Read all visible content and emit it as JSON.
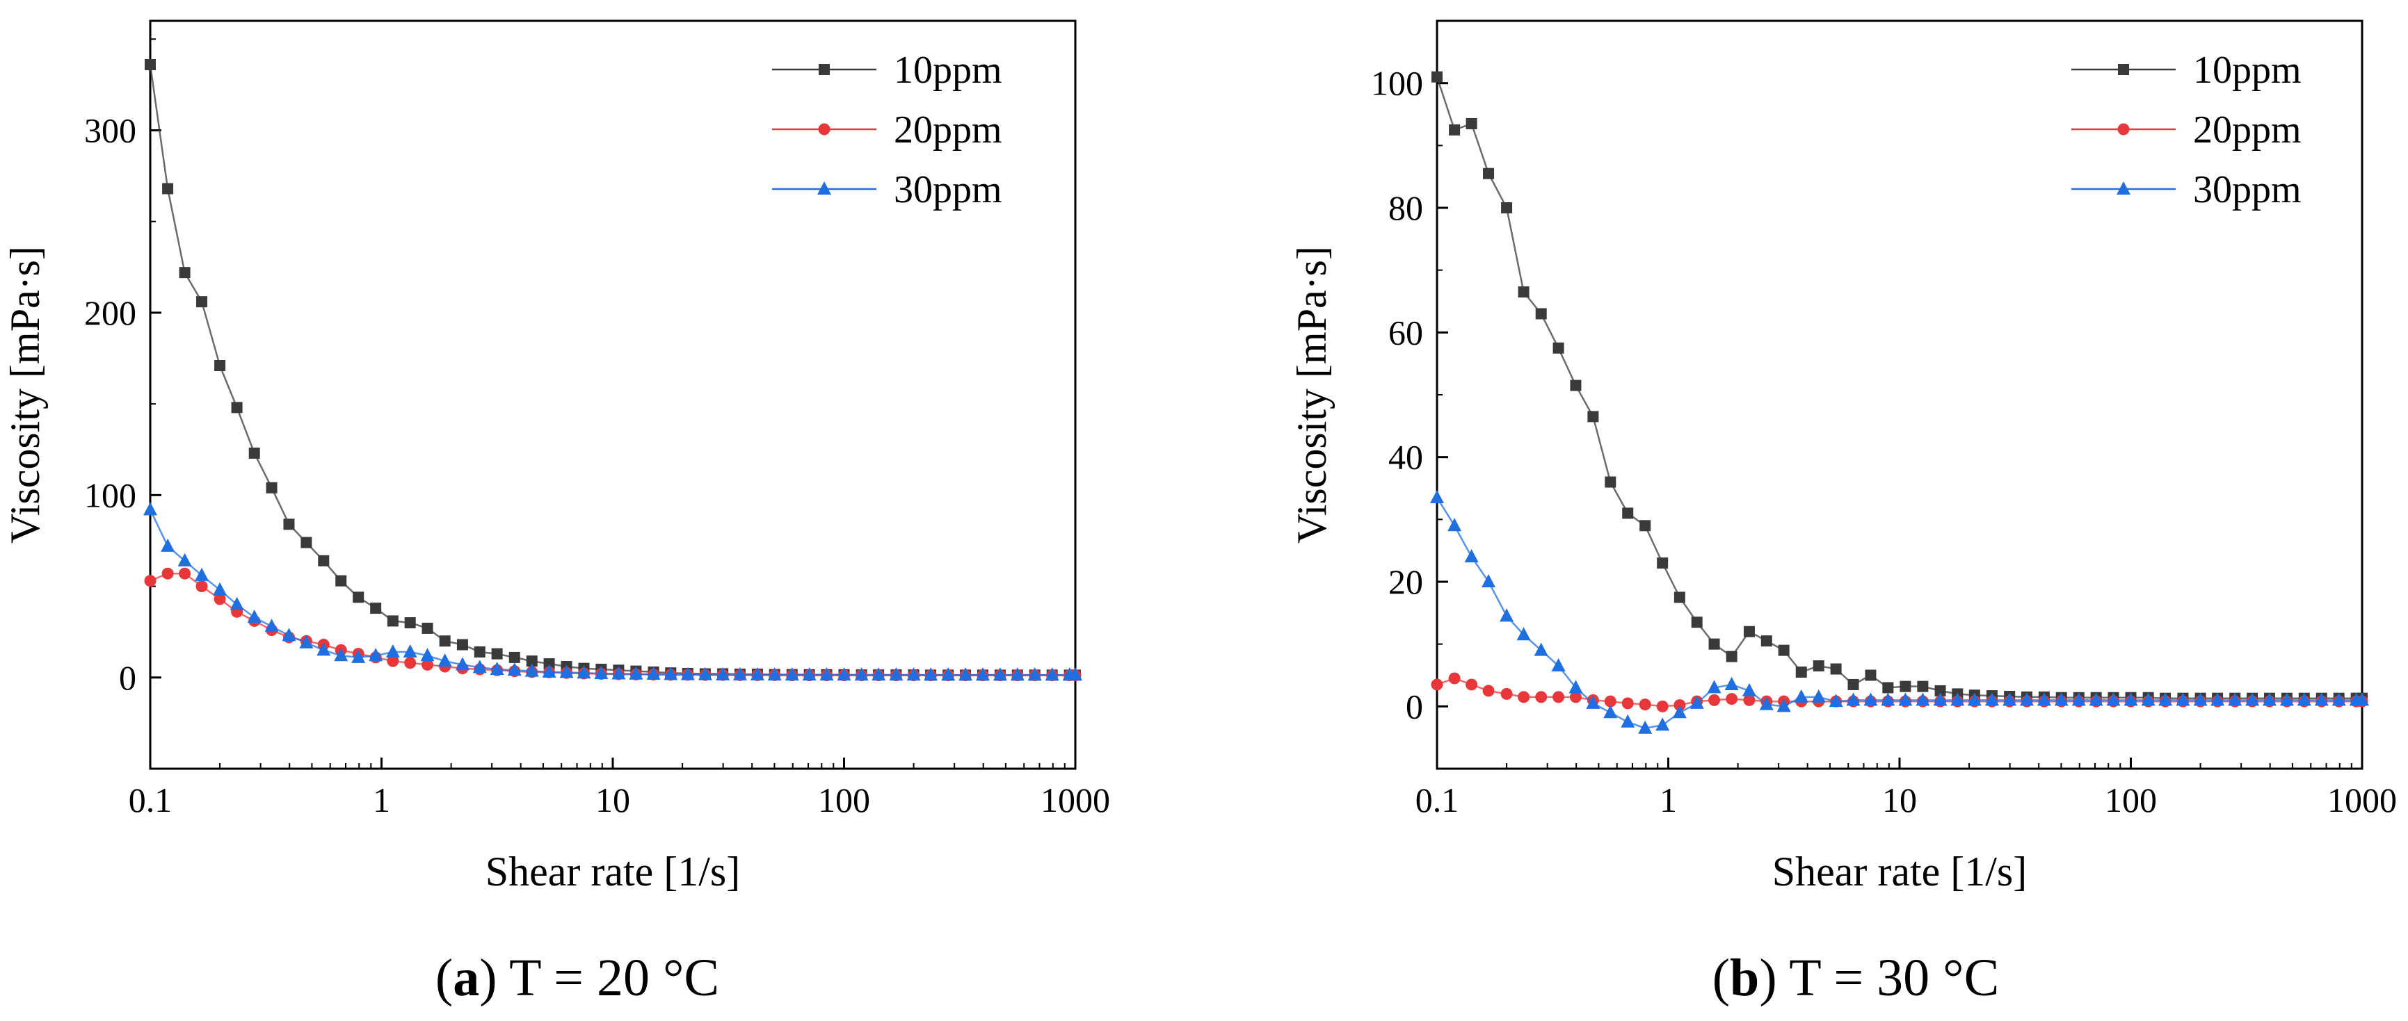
{
  "chart_data": [
    {
      "type": "line",
      "caption_label": "a",
      "caption_text": "T = 20 °C",
      "xlabel": "Shear rate [1/s]",
      "ylabel": "Viscosity [mPa·s]",
      "xscale": "log",
      "xlim": [
        0.1,
        1000
      ],
      "ylim": [
        -50,
        360
      ],
      "xticks": [
        0.1,
        1,
        10,
        100,
        1000
      ],
      "xtick_labels": [
        "0.1",
        "1",
        "10",
        "100",
        "1000"
      ],
      "yticks": [
        0,
        100,
        200,
        300
      ],
      "ytick_labels": [
        "0",
        "100",
        "200",
        "300"
      ],
      "legend_position": "top-right",
      "x": [
        0.1,
        0.119,
        0.141,
        0.167,
        0.2,
        0.237,
        0.282,
        0.335,
        0.398,
        0.473,
        0.562,
        0.668,
        0.794,
        0.944,
        1.12,
        1.33,
        1.58,
        1.88,
        2.24,
        2.66,
        3.16,
        3.76,
        4.47,
        5.31,
        6.31,
        7.5,
        8.91,
        10.6,
        12.6,
        15,
        17.8,
        21.1,
        25.1,
        29.9,
        35.5,
        42.2,
        50.1,
        59.6,
        70.8,
        84.1,
        100,
        119,
        141,
        168,
        200,
        237,
        282,
        335,
        398,
        473,
        562,
        668,
        794,
        944,
        1000
      ],
      "series": [
        {
          "name": "10ppm",
          "color": "#3a3a3a",
          "marker": "square",
          "values": [
            336,
            268,
            222,
            206,
            171,
            148,
            123,
            104,
            84,
            74,
            64,
            53,
            44,
            38,
            31,
            30,
            27,
            20,
            18,
            14,
            13,
            11,
            9,
            7.5,
            6,
            5,
            4.5,
            4,
            3.5,
            3,
            2.5,
            2.2,
            2,
            2,
            1.8,
            1.8,
            1.6,
            1.6,
            1.5,
            1.5,
            1.5,
            1.4,
            1.4,
            1.4,
            1.4,
            1.3,
            1.3,
            1.3,
            1.3,
            1.3,
            1.3,
            1.3,
            1.3,
            1.3,
            1.3
          ]
        },
        {
          "name": "20ppm",
          "color": "#e8373a",
          "marker": "circle",
          "values": [
            53,
            57,
            57,
            50,
            43,
            36,
            31,
            26,
            22,
            20,
            18,
            15,
            13,
            11,
            9,
            8,
            7,
            6,
            5,
            4.5,
            4,
            3.5,
            3,
            2.8,
            2.5,
            2.2,
            2,
            1.8,
            1.7,
            1.6,
            1.5,
            1.5,
            1.4,
            1.4,
            1.3,
            1.3,
            1.3,
            1.2,
            1.2,
            1.2,
            1.2,
            1.2,
            1.2,
            1.2,
            1.2,
            1.2,
            1.2,
            1.2,
            1.2,
            1.2,
            1.2,
            1.2,
            1.2,
            1.2,
            1.2
          ]
        },
        {
          "name": "30ppm",
          "color": "#1f6fe0",
          "marker": "triangle",
          "values": [
            92,
            72,
            64,
            56,
            48,
            40,
            33,
            28,
            23,
            19,
            15,
            12,
            11,
            12,
            14,
            14,
            12,
            9,
            7,
            5.5,
            4.5,
            4,
            3.5,
            3,
            2.8,
            2.5,
            2.2,
            2,
            1.9,
            1.8,
            1.7,
            1.6,
            1.6,
            1.5,
            1.5,
            1.5,
            1.4,
            1.4,
            1.4,
            1.4,
            1.4,
            1.4,
            1.4,
            1.4,
            1.4,
            1.4,
            1.4,
            1.4,
            1.4,
            1.4,
            1.4,
            1.4,
            1.4,
            1.4,
            1.4
          ]
        }
      ]
    },
    {
      "type": "line",
      "caption_label": "b",
      "caption_text": "T = 30 °C",
      "xlabel": "Shear rate [1/s]",
      "ylabel": "Viscosity [mPa·s]",
      "xscale": "log",
      "xlim": [
        0.1,
        1000
      ],
      "ylim": [
        -10,
        110
      ],
      "xticks": [
        0.1,
        1,
        10,
        100,
        1000
      ],
      "xtick_labels": [
        "0.1",
        "1",
        "10",
        "100",
        "1000"
      ],
      "yticks": [
        0,
        20,
        40,
        60,
        80,
        100
      ],
      "ytick_labels": [
        "0",
        "20",
        "40",
        "60",
        "80",
        "100"
      ],
      "legend_position": "top-right",
      "x": [
        0.1,
        0.119,
        0.141,
        0.167,
        0.2,
        0.237,
        0.282,
        0.335,
        0.398,
        0.473,
        0.562,
        0.668,
        0.794,
        0.944,
        1.12,
        1.33,
        1.58,
        1.88,
        2.24,
        2.66,
        3.16,
        3.76,
        4.47,
        5.31,
        6.31,
        7.5,
        8.91,
        10.6,
        12.6,
        15,
        17.8,
        21.1,
        25.1,
        29.9,
        35.5,
        42.2,
        50.1,
        59.6,
        70.8,
        84.1,
        100,
        119,
        141,
        168,
        200,
        237,
        282,
        335,
        398,
        473,
        562,
        668,
        794,
        944,
        1000
      ],
      "series": [
        {
          "name": "10ppm",
          "color": "#3a3a3a",
          "marker": "square",
          "values": [
            101,
            92.5,
            93.5,
            85.5,
            80,
            66.5,
            63,
            57.5,
            51.5,
            46.5,
            36,
            31,
            29,
            23,
            17.5,
            13.5,
            10,
            8,
            12,
            10.5,
            9,
            5.5,
            6.5,
            6,
            3.5,
            5,
            3,
            3.2,
            3.2,
            2.5,
            2,
            1.8,
            1.7,
            1.6,
            1.5,
            1.5,
            1.4,
            1.4,
            1.4,
            1.4,
            1.4,
            1.4,
            1.3,
            1.3,
            1.3,
            1.3,
            1.3,
            1.3,
            1.3,
            1.3,
            1.3,
            1.3,
            1.3,
            1.3,
            1.3
          ]
        },
        {
          "name": "20ppm",
          "color": "#e8373a",
          "marker": "circle",
          "values": [
            3.5,
            4.5,
            3.5,
            2.5,
            2,
            1.5,
            1.5,
            1.5,
            1.5,
            1,
            0.8,
            0.5,
            0.3,
            0,
            0.2,
            0.8,
            1,
            1.2,
            1,
            0.8,
            0.8,
            0.8,
            0.8,
            0.8,
            0.8,
            0.8,
            0.8,
            0.8,
            0.8,
            0.8,
            0.8,
            0.8,
            0.8,
            0.8,
            0.8,
            0.8,
            0.8,
            0.8,
            0.8,
            0.8,
            0.8,
            0.8,
            0.8,
            0.8,
            0.8,
            0.8,
            0.8,
            0.8,
            0.8,
            0.8,
            0.8,
            0.8,
            0.8,
            0.8,
            0.8
          ]
        },
        {
          "name": "30ppm",
          "color": "#1f6fe0",
          "marker": "triangle",
          "values": [
            33.5,
            29,
            24,
            20,
            14.5,
            11.5,
            9,
            6.5,
            3,
            0.5,
            -1,
            -2.5,
            -3.5,
            -3,
            -1,
            0.5,
            3,
            3.5,
            2.5,
            0.3,
            0,
            1.5,
            1.5,
            0.8,
            1,
            1,
            1,
            1,
            1,
            1,
            1,
            1,
            1,
            1,
            1,
            1,
            1,
            1,
            1,
            1,
            1,
            1,
            1,
            1,
            1,
            1,
            1,
            1,
            1,
            1,
            1,
            1,
            1,
            1,
            1
          ]
        }
      ]
    }
  ]
}
